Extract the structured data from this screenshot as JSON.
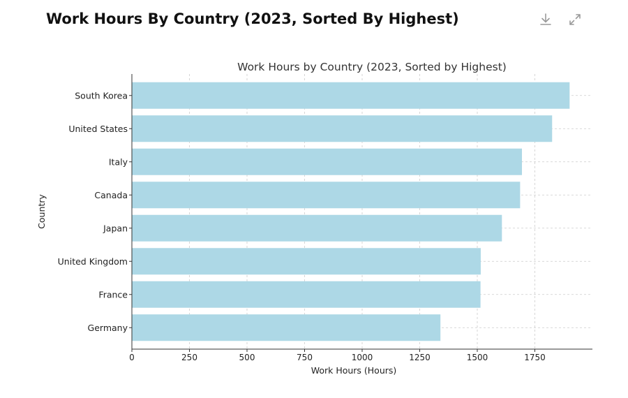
{
  "page": {
    "heading": "Work Hours By Country (2023, Sorted By Highest)"
  },
  "toolbar": {
    "download_icon": "download-icon",
    "expand_icon": "expand-icon",
    "icon_color": "#9a9a9a"
  },
  "chart_data": {
    "type": "bar",
    "orientation": "horizontal",
    "title": "Work Hours by Country (2023, Sorted by Highest)",
    "xlabel": "Work Hours (Hours)",
    "ylabel": "Country",
    "categories": [
      "South Korea",
      "United States",
      "Italy",
      "Canada",
      "Japan",
      "United Kingdom",
      "France",
      "Germany"
    ],
    "values": [
      1901,
      1825,
      1694,
      1686,
      1607,
      1515,
      1514,
      1340
    ],
    "xlim": [
      0,
      2000
    ],
    "xticks": [
      0,
      250,
      500,
      750,
      1000,
      1250,
      1500,
      1750
    ],
    "grid": true,
    "bar_color": "#add8e6"
  }
}
